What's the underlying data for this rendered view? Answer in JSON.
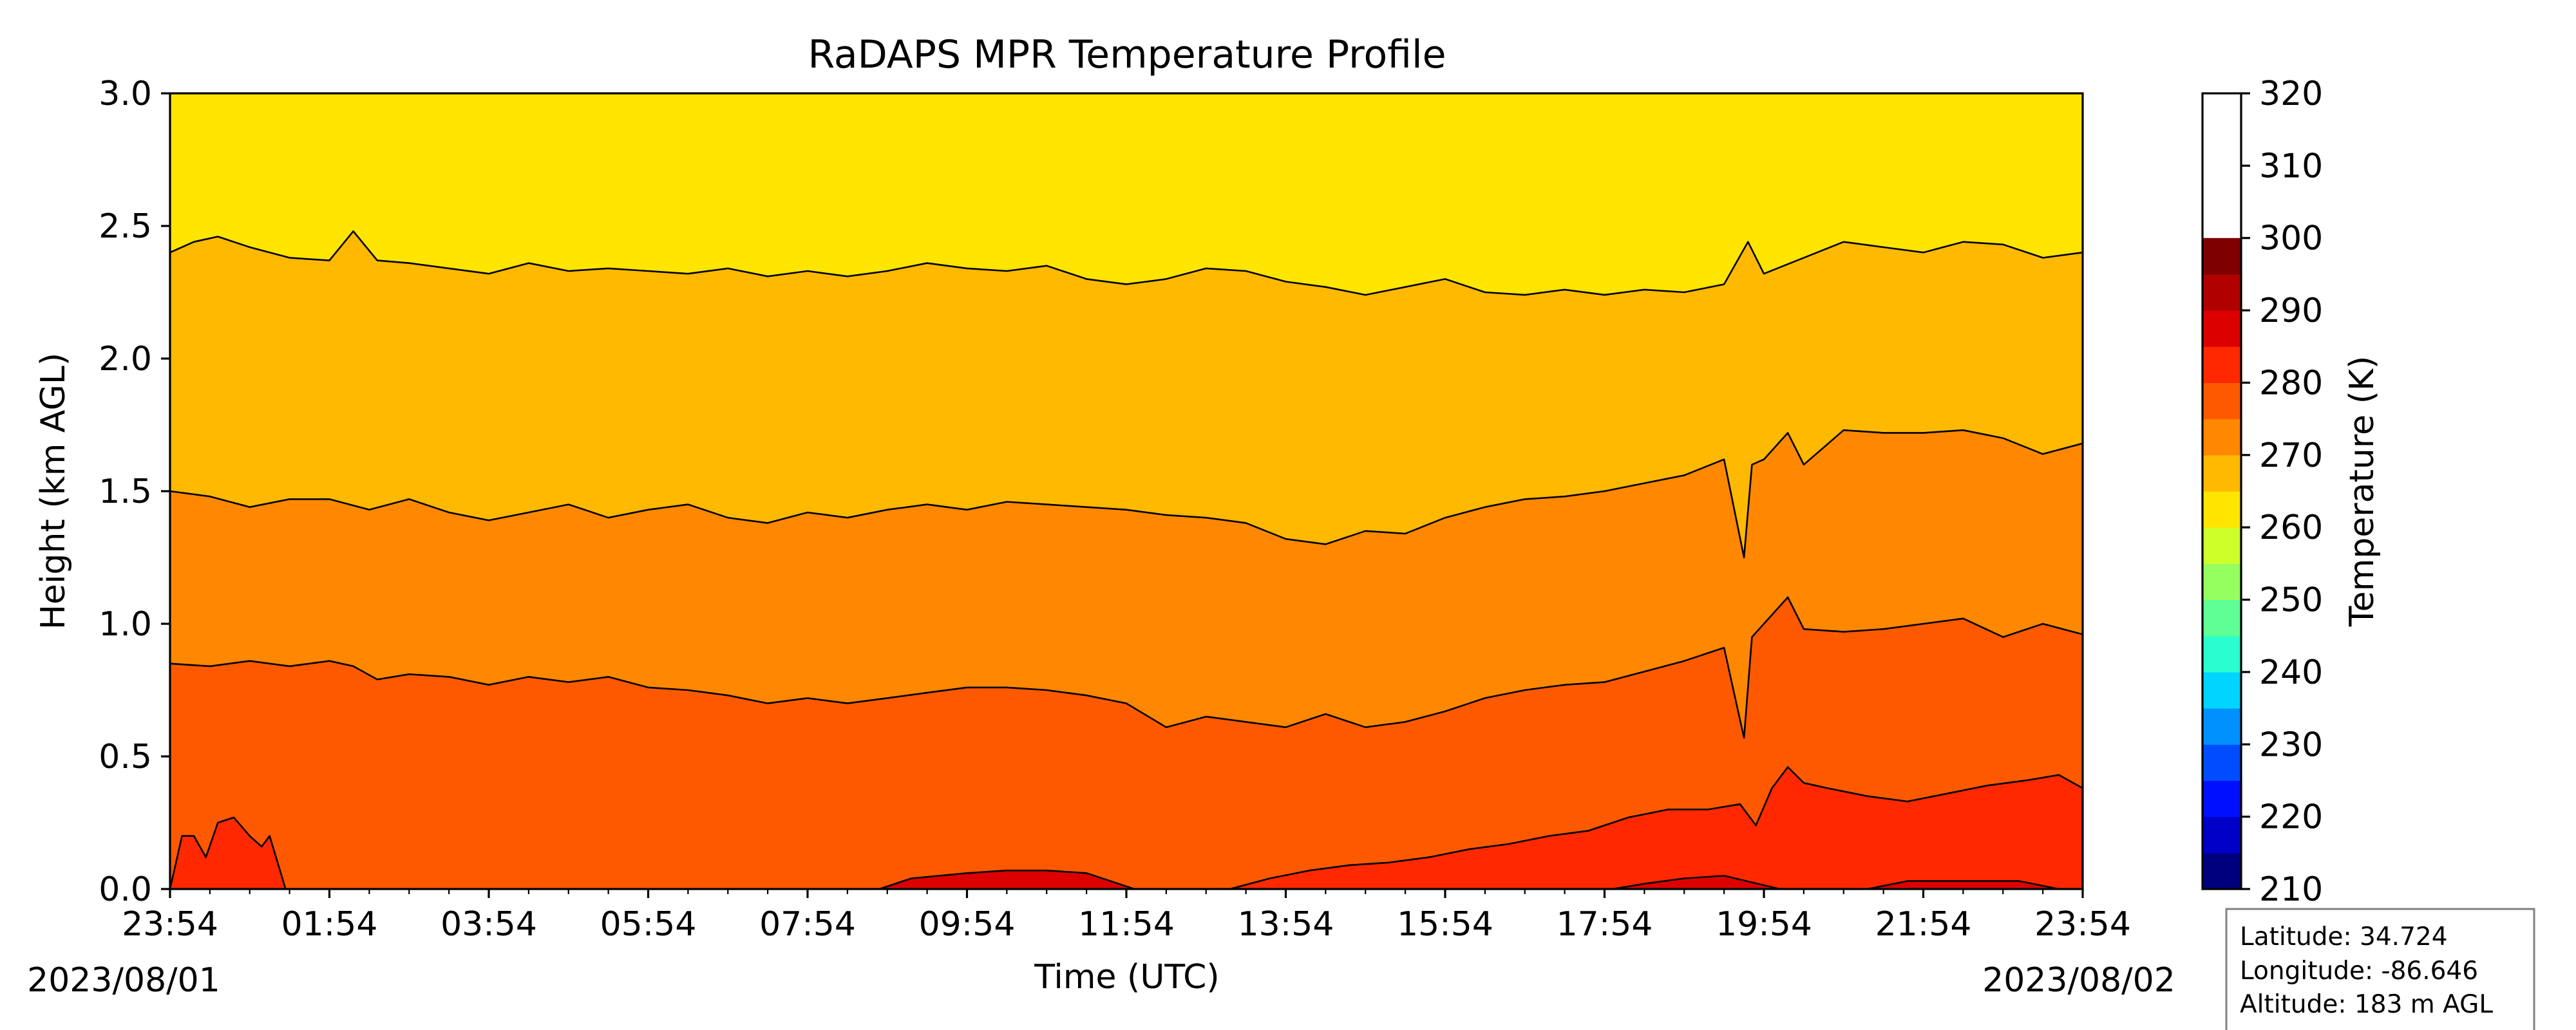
{
  "chart_data": {
    "type": "heatmap",
    "subtype": "filled contour",
    "title": "RaDAPS MPR Temperature Profile",
    "xlabel": "Time (UTC)",
    "ylabel": "Height (km AGL)",
    "ylim": [
      0,
      3
    ],
    "y_ticks": [
      "0.0",
      "0.5",
      "1.0",
      "1.5",
      "2.0",
      "2.5",
      "3.0"
    ],
    "x_range_hours": [
      0,
      24
    ],
    "x_tick_step_hours": 2,
    "x_minor_tick_step_hours": 0.5,
    "x_ticks": [
      "23:54",
      "01:54",
      "03:54",
      "05:54",
      "07:54",
      "09:54",
      "11:54",
      "13:54",
      "15:54",
      "17:54",
      "19:54",
      "21:54",
      "23:54"
    ],
    "start_date": "2023/08/01",
    "end_date": "2023/08/02",
    "colorbar": {
      "label": "Temperature (K)",
      "range": [
        210,
        320
      ],
      "level_step": 5,
      "ticks": [
        "210",
        "220",
        "230",
        "240",
        "250",
        "260",
        "270",
        "280",
        "290",
        "300",
        "310",
        "320"
      ],
      "level_colors": [
        "#00007f",
        "#0000c8",
        "#0010ff",
        "#004cff",
        "#0090ff",
        "#00d4ff",
        "#29ffce",
        "#60ff96",
        "#96ff60",
        "#ceff29",
        "#ffe500",
        "#ffb900",
        "#ff8800",
        "#ff5900",
        "#ff2800",
        "#dd0000",
        "#b00000",
        "#7f0000"
      ]
    },
    "contour_lines_km": [
      {
        "level_k": 285,
        "color_above": "#ffe500",
        "color_below": "#ffb900",
        "hours": [
          0,
          0.3,
          0.6,
          1,
          1.5,
          2,
          2.3,
          2.6,
          3,
          3.5,
          4,
          4.5,
          5,
          5.5,
          6,
          6.5,
          7,
          7.5,
          8,
          8.5,
          9,
          9.5,
          10,
          10.5,
          11,
          11.5,
          12,
          12.5,
          13,
          13.5,
          14,
          14.5,
          15,
          15.5,
          16,
          16.5,
          17,
          17.5,
          18,
          18.5,
          19,
          19.5,
          19.8,
          20,
          20.5,
          21,
          21.5,
          22,
          22.5,
          23,
          23.5,
          24
        ],
        "heights": [
          2.4,
          2.44,
          2.46,
          2.42,
          2.38,
          2.37,
          2.48,
          2.37,
          2.36,
          2.34,
          2.32,
          2.36,
          2.33,
          2.34,
          2.33,
          2.32,
          2.34,
          2.31,
          2.33,
          2.31,
          2.33,
          2.36,
          2.34,
          2.33,
          2.35,
          2.3,
          2.28,
          2.3,
          2.34,
          2.33,
          2.29,
          2.27,
          2.24,
          2.27,
          2.3,
          2.25,
          2.24,
          2.26,
          2.24,
          2.26,
          2.25,
          2.28,
          2.44,
          2.32,
          2.38,
          2.44,
          2.42,
          2.4,
          2.44,
          2.43,
          2.38,
          2.4
        ]
      },
      {
        "level_k": 290,
        "color_above": "#ffb900",
        "color_below": "#ff8800",
        "hours": [
          0,
          0.5,
          1,
          1.5,
          2,
          2.5,
          3,
          3.5,
          4,
          4.5,
          5,
          5.5,
          6,
          6.5,
          7,
          7.5,
          8,
          8.5,
          9,
          9.5,
          10,
          10.5,
          11,
          11.5,
          12,
          12.5,
          13,
          13.5,
          14,
          14.5,
          15,
          15.5,
          16,
          16.5,
          17,
          17.5,
          18,
          18.5,
          19,
          19.5,
          19.75,
          19.85,
          20,
          20.3,
          20.5,
          21,
          21.5,
          22,
          22.5,
          23,
          23.5,
          24
        ],
        "heights": [
          1.5,
          1.48,
          1.44,
          1.47,
          1.47,
          1.43,
          1.47,
          1.42,
          1.39,
          1.42,
          1.45,
          1.4,
          1.43,
          1.45,
          1.4,
          1.38,
          1.42,
          1.4,
          1.43,
          1.45,
          1.43,
          1.46,
          1.45,
          1.44,
          1.43,
          1.41,
          1.4,
          1.38,
          1.32,
          1.3,
          1.35,
          1.34,
          1.4,
          1.44,
          1.47,
          1.48,
          1.5,
          1.53,
          1.56,
          1.62,
          1.25,
          1.6,
          1.62,
          1.72,
          1.6,
          1.73,
          1.72,
          1.72,
          1.73,
          1.7,
          1.64,
          1.68
        ]
      },
      {
        "level_k": 295,
        "color_above": "#ff8800",
        "color_below": "#ff5900",
        "hours": [
          0,
          0.5,
          1,
          1.5,
          2,
          2.3,
          2.6,
          3,
          3.5,
          4,
          4.5,
          5,
          5.5,
          6,
          6.5,
          7,
          7.5,
          8,
          8.5,
          9,
          9.5,
          10,
          10.5,
          11,
          11.5,
          12,
          12.5,
          13,
          13.5,
          14,
          14.5,
          15,
          15.5,
          16,
          16.5,
          17,
          17.5,
          18,
          18.5,
          19,
          19.5,
          19.75,
          19.85,
          20,
          20.3,
          20.5,
          21,
          21.5,
          22,
          22.5,
          23,
          23.5,
          24
        ],
        "heights": [
          0.85,
          0.84,
          0.86,
          0.84,
          0.86,
          0.84,
          0.79,
          0.81,
          0.8,
          0.77,
          0.8,
          0.78,
          0.8,
          0.76,
          0.75,
          0.73,
          0.7,
          0.72,
          0.7,
          0.72,
          0.74,
          0.76,
          0.76,
          0.75,
          0.73,
          0.7,
          0.61,
          0.65,
          0.63,
          0.61,
          0.66,
          0.61,
          0.63,
          0.67,
          0.72,
          0.75,
          0.77,
          0.78,
          0.82,
          0.86,
          0.91,
          0.57,
          0.95,
          1.0,
          1.1,
          0.98,
          0.97,
          0.98,
          1.0,
          1.02,
          0.95,
          1.0,
          0.96
        ]
      },
      {
        "level_k": 300,
        "color_above": "#ff5900",
        "color_below": "#ff2800",
        "hours": [
          13.3,
          13.8,
          14.3,
          14.8,
          15.3,
          15.8,
          16.3,
          16.8,
          17.3,
          17.8,
          18.3,
          18.8,
          19.3,
          19.7,
          19.9,
          20.1,
          20.3,
          20.5,
          20.8,
          21.3,
          21.8,
          22.3,
          22.8,
          23.3,
          23.7,
          24
        ],
        "heights": [
          0,
          0.04,
          0.07,
          0.09,
          0.1,
          0.12,
          0.15,
          0.17,
          0.2,
          0.22,
          0.27,
          0.3,
          0.3,
          0.32,
          0.24,
          0.38,
          0.46,
          0.4,
          0.38,
          0.35,
          0.33,
          0.36,
          0.39,
          0.41,
          0.43,
          0.38
        ]
      },
      {
        "level_k": 300,
        "color_above": "#ff5900",
        "color_below": "#ff2800",
        "hours": [
          0,
          0.15,
          0.3,
          0.45,
          0.6,
          0.8,
          1.0,
          1.15,
          1.25,
          1.4,
          1.45
        ],
        "heights": [
          0,
          0.2,
          0.2,
          0.12,
          0.25,
          0.27,
          0.2,
          0.16,
          0.2,
          0.05,
          0
        ]
      },
      {
        "level_k": 305,
        "color_above": "#ff2800",
        "color_below": "#dd0000",
        "hours": [
          8.9,
          9.3,
          10,
          10.5,
          11,
          11.5,
          12.1
        ],
        "heights": [
          0,
          0.04,
          0.06,
          0.07,
          0.07,
          0.06,
          0
        ]
      },
      {
        "level_k": 305,
        "color_above": "#ff2800",
        "color_below": "#dd0000",
        "hours": [
          18.1,
          18.5,
          19,
          19.5,
          20.2
        ],
        "heights": [
          0,
          0.02,
          0.04,
          0.05,
          0
        ]
      },
      {
        "level_k": 305,
        "color_above": "#ff2800",
        "color_below": "#dd0000",
        "hours": [
          21.3,
          21.8,
          22.5,
          23.2,
          23.7
        ],
        "heights": [
          0,
          0.03,
          0.03,
          0.03,
          0
        ]
      }
    ]
  },
  "station": {
    "latitude": "Latitude: 34.724",
    "longitude": "Longitude: -86.646",
    "altitude": "Altitude: 183 m AGL"
  }
}
